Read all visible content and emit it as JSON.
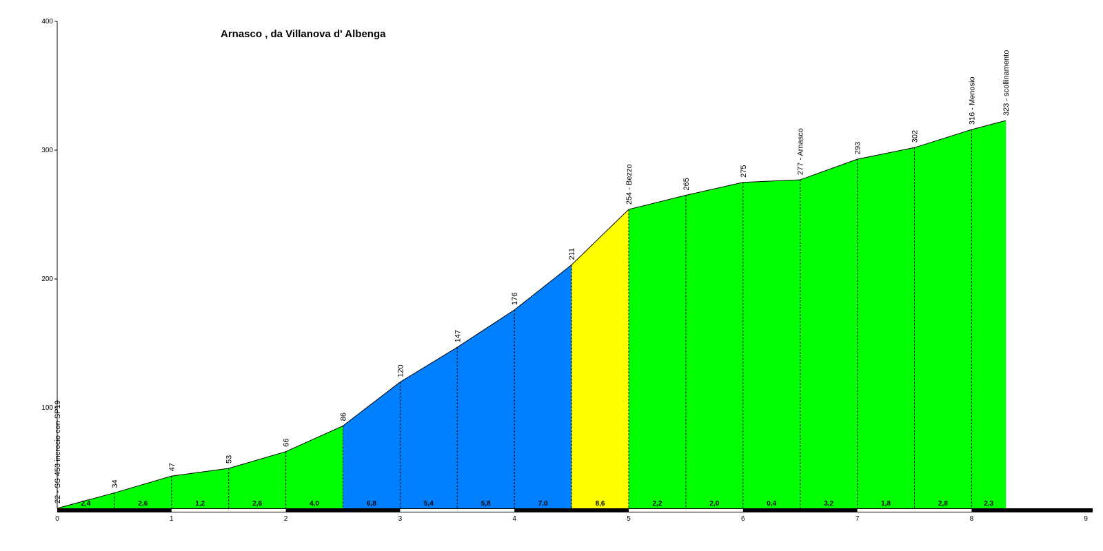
{
  "chart_data": {
    "type": "area",
    "title": "Arnasco , da Villanova d' Albenga",
    "xlabel": "",
    "ylabel": "",
    "xlim": [
      0,
      9
    ],
    "ylim": [
      22,
      400
    ],
    "x_ticks": [
      "0",
      "1",
      "2",
      "3",
      "4",
      "5",
      "6",
      "7",
      "8",
      "9"
    ],
    "y_ticks": [
      {
        "value": 100,
        "label": "100"
      },
      {
        "value": 200,
        "label": "200"
      },
      {
        "value": 300,
        "label": "300"
      },
      {
        "value": 400,
        "label": "400"
      }
    ],
    "points": [
      {
        "x": 0,
        "y": 22,
        "label": "22 - SS 453 incrocio con SP19"
      },
      {
        "x": 0.5,
        "y": 34,
        "label": "34"
      },
      {
        "x": 1,
        "y": 47,
        "label": "47"
      },
      {
        "x": 1.5,
        "y": 53,
        "label": "53"
      },
      {
        "x": 2,
        "y": 66,
        "label": "66"
      },
      {
        "x": 2.5,
        "y": 86,
        "label": "86"
      },
      {
        "x": 3,
        "y": 120,
        "label": "120"
      },
      {
        "x": 3.5,
        "y": 147,
        "label": "147"
      },
      {
        "x": 4,
        "y": 176,
        "label": "176"
      },
      {
        "x": 4.5,
        "y": 211,
        "label": "211"
      },
      {
        "x": 5,
        "y": 254,
        "label": "254 - Bezzo"
      },
      {
        "x": 5.5,
        "y": 265,
        "label": "265"
      },
      {
        "x": 6,
        "y": 275,
        "label": "275"
      },
      {
        "x": 6.5,
        "y": 277,
        "label": "277 - Arnasco"
      },
      {
        "x": 7,
        "y": 293,
        "label": "293"
      },
      {
        "x": 7.5,
        "y": 302,
        "label": "302"
      },
      {
        "x": 8,
        "y": 316,
        "label": "316 - Menosio"
      },
      {
        "x": 8.3,
        "y": 323,
        "label": "323 - scollinamento"
      }
    ],
    "segments": [
      {
        "label": "2,4",
        "color": "#00ff00"
      },
      {
        "label": "2,6",
        "color": "#00ff00"
      },
      {
        "label": "1,2",
        "color": "#00ff00"
      },
      {
        "label": "2,6",
        "color": "#00ff00"
      },
      {
        "label": "4,0",
        "color": "#00ff00"
      },
      {
        "label": "6,8",
        "color": "#0080ff"
      },
      {
        "label": "5,4",
        "color": "#0080ff"
      },
      {
        "label": "5,8",
        "color": "#0080ff"
      },
      {
        "label": "7,0",
        "color": "#0080ff"
      },
      {
        "label": "8,6",
        "color": "#ffff00"
      },
      {
        "label": "2,2",
        "color": "#00ff00"
      },
      {
        "label": "2,0",
        "color": "#00ff00"
      },
      {
        "label": "0,4",
        "color": "#00ff00"
      },
      {
        "label": "3,2",
        "color": "#00ff00"
      },
      {
        "label": "1,8",
        "color": "#00ff00"
      },
      {
        "label": "2,8",
        "color": "#00ff00"
      },
      {
        "label": "2,3",
        "color": "#00ff00"
      }
    ],
    "grid": false,
    "legend": "none"
  }
}
